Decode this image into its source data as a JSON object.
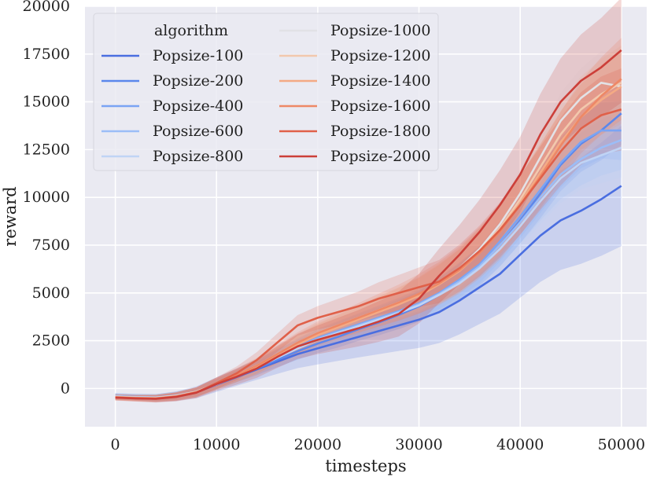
{
  "chart_data": {
    "type": "line",
    "title": "",
    "xlabel": "timesteps",
    "ylabel": "reward",
    "xlim": [
      -3000,
      52500
    ],
    "ylim": [
      -2000,
      20000
    ],
    "xticks": [
      0,
      10000,
      20000,
      30000,
      40000,
      50000
    ],
    "xtick_labels": [
      "0",
      "10000",
      "20000",
      "30000",
      "40000",
      "50000"
    ],
    "yticks": [
      0,
      2500,
      5000,
      7500,
      10000,
      12500,
      15000,
      17500,
      20000
    ],
    "ytick_labels": [
      "0",
      "2500",
      "5000",
      "7500",
      "10000",
      "12500",
      "15000",
      "17500",
      "20000"
    ],
    "grid": true,
    "legend": {
      "title": "algorithm",
      "placement": "top-left",
      "columns": 2
    },
    "x": [
      0,
      2000,
      4000,
      6000,
      8000,
      10000,
      12000,
      14000,
      16000,
      18000,
      20000,
      22000,
      24000,
      26000,
      28000,
      30000,
      32000,
      34000,
      36000,
      38000,
      40000,
      42000,
      44000,
      46000,
      48000,
      50000
    ],
    "series": [
      {
        "name": "Popsize-100",
        "color": "#4a6ee0",
        "band": 3000,
        "values": [
          -400,
          -450,
          -500,
          -400,
          -200,
          200,
          600,
          1000,
          1400,
          1800,
          2100,
          2400,
          2700,
          3000,
          3300,
          3600,
          4000,
          4600,
          5300,
          6000,
          7000,
          8000,
          8800,
          9300,
          9900,
          10600
        ]
      },
      {
        "name": "Popsize-200",
        "color": "#5b87ec",
        "band": 1500,
        "values": [
          -420,
          -460,
          -480,
          -380,
          -180,
          220,
          640,
          1050,
          1500,
          1950,
          2350,
          2700,
          3100,
          3450,
          3850,
          4300,
          4900,
          5600,
          6400,
          7500,
          8800,
          10200,
          11700,
          12800,
          13500,
          14400
        ]
      },
      {
        "name": "Popsize-400",
        "color": "#7aa4f4",
        "band": 1400,
        "values": [
          -400,
          -440,
          -470,
          -370,
          -170,
          240,
          680,
          1150,
          1700,
          2200,
          2650,
          3000,
          3350,
          3700,
          4050,
          4450,
          5000,
          5700,
          6500,
          7700,
          9000,
          10400,
          11800,
          12900,
          13500,
          13500
        ]
      },
      {
        "name": "Popsize-600",
        "color": "#9bbdf7",
        "band": 1400,
        "values": [
          -410,
          -450,
          -470,
          -370,
          -170,
          230,
          660,
          1120,
          1650,
          2150,
          2600,
          2950,
          3300,
          3650,
          4000,
          4400,
          4950,
          5600,
          6400,
          7500,
          8700,
          10000,
          11200,
          12000,
          12600,
          13000
        ]
      },
      {
        "name": "Popsize-800",
        "color": "#c0d4f5",
        "band": 1400,
        "values": [
          -420,
          -460,
          -480,
          -380,
          -180,
          220,
          640,
          1100,
          1600,
          2100,
          2550,
          2900,
          3250,
          3600,
          3950,
          4350,
          4900,
          5500,
          6300,
          7300,
          8500,
          9800,
          11000,
          11800,
          12200,
          12600
        ]
      },
      {
        "name": "Popsize-1000",
        "color": "#e2e2e6",
        "band": 1600,
        "values": [
          -430,
          -470,
          -490,
          -390,
          -170,
          250,
          700,
          1200,
          1800,
          2400,
          2900,
          3300,
          3700,
          4100,
          4500,
          4900,
          5500,
          6300,
          7300,
          8600,
          10200,
          12100,
          14000,
          15200,
          16000,
          15800
        ]
      },
      {
        "name": "Popsize-1200",
        "color": "#f2c8ad",
        "band": 1800,
        "values": [
          -440,
          -480,
          -500,
          -400,
          -180,
          240,
          680,
          1150,
          1750,
          2350,
          2850,
          3250,
          3650,
          4050,
          4450,
          4900,
          5500,
          6200,
          7200,
          8400,
          9900,
          11600,
          13300,
          14600,
          15400,
          16000
        ]
      },
      {
        "name": "Popsize-1400",
        "color": "#f4aa84",
        "band": 1800,
        "values": [
          -450,
          -490,
          -510,
          -410,
          -190,
          230,
          660,
          1120,
          1700,
          2300,
          2800,
          3200,
          3600,
          4000,
          4400,
          4850,
          5450,
          6150,
          7100,
          8300,
          9700,
          11300,
          12900,
          14200,
          15100,
          15800
        ]
      },
      {
        "name": "Popsize-1600",
        "color": "#ee8866",
        "band": 2000,
        "values": [
          -460,
          -500,
          -520,
          -420,
          -200,
          250,
          700,
          1200,
          1800,
          2400,
          2900,
          3300,
          3700,
          4100,
          4500,
          4950,
          5500,
          6200,
          7100,
          8200,
          9600,
          11100,
          12700,
          14200,
          15300,
          16200
        ]
      },
      {
        "name": "Popsize-1800",
        "color": "#e06049",
        "band": 2000,
        "values": [
          -470,
          -510,
          -530,
          -430,
          -210,
          280,
          800,
          1500,
          2400,
          3300,
          3700,
          4000,
          4300,
          4700,
          5000,
          5300,
          5600,
          6300,
          7200,
          8300,
          9600,
          11000,
          12400,
          13600,
          14300,
          14600
        ]
      },
      {
        "name": "Popsize-2000",
        "color": "#cc3f39",
        "band": 2600,
        "values": [
          -480,
          -520,
          -540,
          -440,
          -220,
          230,
          620,
          1050,
          1650,
          2200,
          2550,
          2850,
          3150,
          3500,
          3900,
          4700,
          5900,
          7000,
          8200,
          9600,
          11200,
          13300,
          15000,
          16100,
          16800,
          17700
        ]
      }
    ]
  }
}
